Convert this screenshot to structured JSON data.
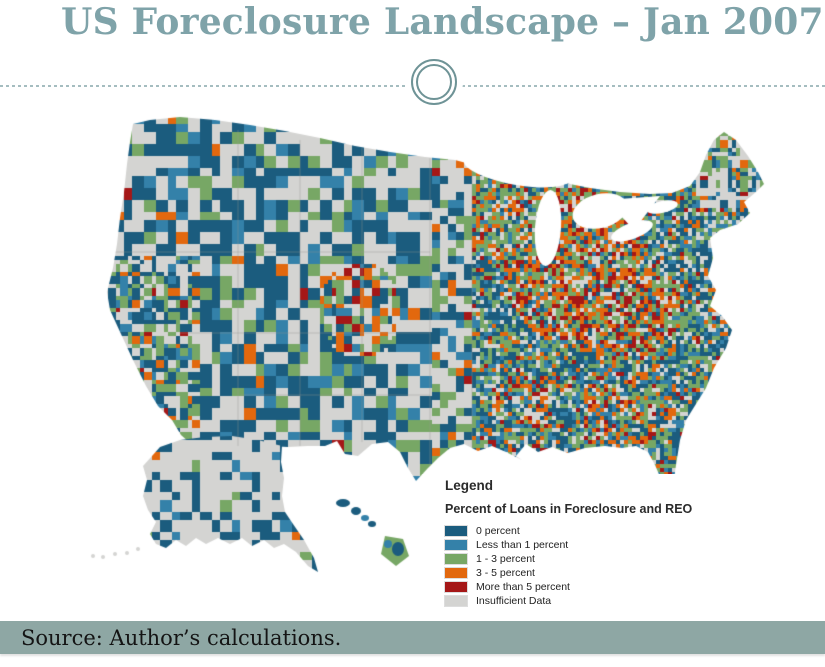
{
  "slide": {
    "title": "US Foreclosure Landscape – Jan 2007",
    "source": "Source: Author’s calculations."
  },
  "legend": {
    "title": "Legend",
    "subtitle": "Percent of Loans in Foreclosure and REO",
    "items": [
      {
        "label": "0 percent",
        "color": "#1b5c7e"
      },
      {
        "label": "Less than 1 percent",
        "color": "#3481a9"
      },
      {
        "label": "1 - 3 percent",
        "color": "#77a765"
      },
      {
        "label": "3 - 5 percent",
        "color": "#e2680e"
      },
      {
        "label": "More than 5 percent",
        "color": "#a51717"
      },
      {
        "label": "Insufficient Data",
        "color": "#d4d4d2"
      }
    ]
  },
  "map": {
    "kind": "county-choropleth",
    "area": "United States (lower 48, Alaska, Hawaii)",
    "metric": "Percent of Loans in Foreclosure and REO",
    "period": "Jan 2007",
    "water_color": "#ffffff",
    "visible_pattern": "West dominated by 0-percent (dark blue) and insufficient-data (gray) counties; dense mixed mosaic east of the Plains with heavy 3-5 and 5+ percent (orange/red) concentrations in Michigan, Ohio and Indiana, plus hotspots in Colorado, Georgia and Mississippi; Alaska mostly insufficient data"
  },
  "theme": {
    "title_color": "#7fa3a9",
    "ornament_color": "#6e9396",
    "divider_color": "#a5bdc0",
    "source_band_color": "#8ea7a4",
    "source_text_color": "#141414"
  }
}
